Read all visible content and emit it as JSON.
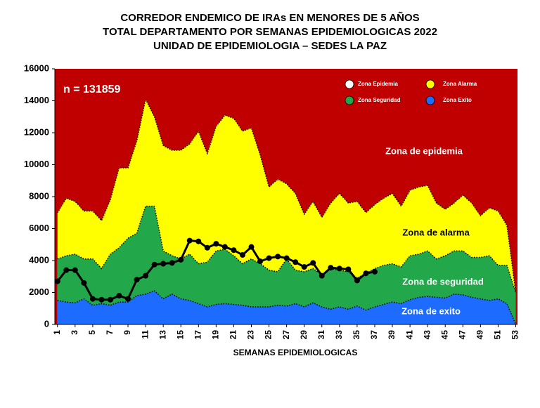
{
  "chart_data": {
    "type": "area",
    "title": [
      "CORREDOR ENDEMICO DE IRAs EN MENORES DE 5 AÑOS",
      "TOTAL DEPARTAMENTO POR SEMANAS EPIDEMIOLOGICAS 2022",
      "UNIDAD DE EPIDEMIOLOGIA – SEDES LA PAZ"
    ],
    "xlabel": "SEMANAS EPIDEMIOLOGICAS",
    "x": [
      1,
      2,
      3,
      4,
      5,
      6,
      7,
      8,
      9,
      10,
      11,
      12,
      13,
      14,
      15,
      16,
      17,
      18,
      19,
      20,
      21,
      22,
      23,
      24,
      25,
      26,
      27,
      28,
      29,
      30,
      31,
      32,
      33,
      34,
      35,
      36,
      37,
      38,
      39,
      40,
      41,
      42,
      43,
      44,
      45,
      46,
      47,
      48,
      49,
      50,
      51,
      52,
      53
    ],
    "xlim": [
      0.7,
      53.2
    ],
    "xticks": [
      1,
      3,
      5,
      7,
      9,
      11,
      13,
      15,
      17,
      19,
      21,
      23,
      25,
      27,
      29,
      31,
      33,
      35,
      37,
      39,
      41,
      43,
      45,
      47,
      49,
      51,
      53
    ],
    "ylim": [
      0,
      16000
    ],
    "yticks": [
      0,
      2000,
      4000,
      6000,
      8000,
      10000,
      12000,
      14000,
      16000
    ],
    "grid": false,
    "series": [
      {
        "name": "Zona Epidemia",
        "color": "#c00000",
        "marker_color": "#ffffff"
      },
      {
        "name": "Zona Alarma",
        "color": "#ffff00",
        "values": [
          7000,
          7900,
          7700,
          7100,
          7100,
          6500,
          7800,
          9800,
          9800,
          11500,
          14100,
          13000,
          11200,
          10900,
          10900,
          11300,
          12100,
          10700,
          12400,
          13100,
          12900,
          12100,
          12300,
          10600,
          8600,
          9100,
          8800,
          8200,
          6900,
          7700,
          6700,
          7600,
          8200,
          7600,
          7700,
          7000,
          7500,
          7900,
          8200,
          7400,
          8400,
          8600,
          8700,
          7600,
          7200,
          7600,
          8100,
          7600,
          6800,
          7300,
          7100,
          6200,
          2000
        ]
      },
      {
        "name": "Zona Seguridad",
        "color": "#22a84a",
        "values": [
          4100,
          4300,
          4400,
          4100,
          4100,
          3500,
          4400,
          4800,
          5400,
          5700,
          7400,
          7400,
          4600,
          4300,
          4100,
          4400,
          3800,
          3900,
          4600,
          4700,
          4300,
          3800,
          4100,
          3800,
          3400,
          3300,
          4100,
          3400,
          3300,
          3500,
          3100,
          3500,
          3400,
          3300,
          2900,
          3200,
          3500,
          3700,
          3800,
          3600,
          4300,
          4400,
          4600,
          4100,
          4300,
          4600,
          4600,
          4200,
          4200,
          4300,
          3700,
          3700,
          2000
        ]
      },
      {
        "name": "Zona Exito",
        "color": "#1e6cff",
        "values": [
          1500,
          1400,
          1350,
          1600,
          1200,
          1300,
          1200,
          1400,
          1400,
          1800,
          1900,
          2100,
          1600,
          1900,
          1600,
          1500,
          1300,
          1100,
          1250,
          1300,
          1250,
          1200,
          1100,
          1100,
          1100,
          1200,
          1150,
          1300,
          1100,
          1350,
          1100,
          950,
          1100,
          950,
          1150,
          900,
          1100,
          1250,
          1400,
          1300,
          1550,
          1700,
          1750,
          1700,
          1650,
          1900,
          1850,
          1700,
          1600,
          1500,
          1600,
          1300,
          0
        ]
      }
    ],
    "cases": [
      2700,
      3400,
      3400,
      2600,
      1600,
      1550,
      1550,
      1800,
      1600,
      2800,
      3050,
      3750,
      3800,
      3850,
      4050,
      5250,
      5200,
      4800,
      5050,
      4850,
      4650,
      4350,
      4850,
      3950,
      4150,
      4250,
      4150,
      3900,
      3600,
      3850,
      3050,
      3550,
      3500,
      3450,
      2750,
      3200,
      3300,
      null,
      null,
      null,
      null,
      null,
      null,
      null,
      null,
      null,
      null,
      null,
      null,
      null,
      null,
      null,
      null
    ],
    "annotations": [
      "n =  131859",
      "Zona de epidemia",
      "Zona de alarma",
      "Zona de  seguridad",
      "Zona de exito"
    ]
  }
}
